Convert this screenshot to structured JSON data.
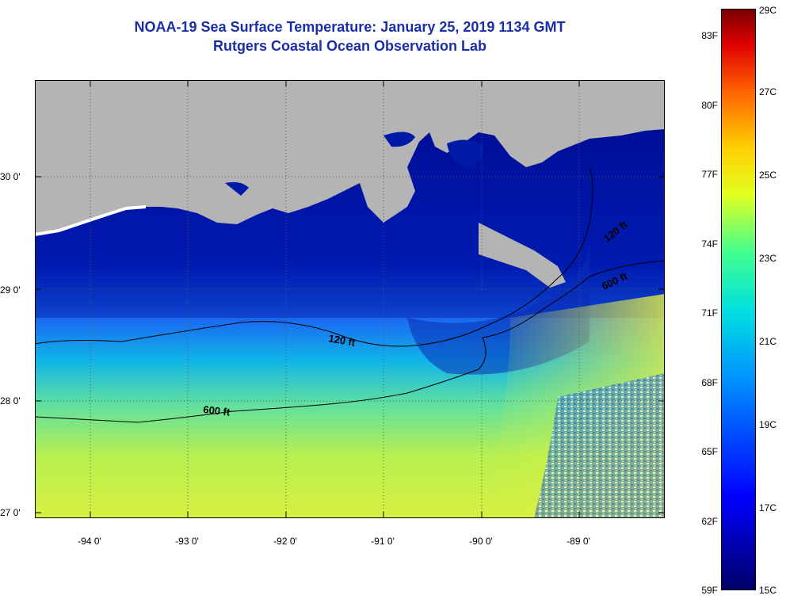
{
  "header": {
    "title": "NOAA-19 Sea Surface Temperature:  January 25, 2019 1134 GMT",
    "subtitle": "Rutgers Coastal Ocean Observation Lab"
  },
  "map": {
    "lat_labels": [
      "30 0'",
      "29 0'",
      "28 0'",
      "27 0'"
    ],
    "lon_labels": [
      "-94 0'",
      "-93 0'",
      "-92 0'",
      "-91 0'",
      "-90 0'",
      "-89 0'"
    ],
    "isobath_labels": [
      "120 ft",
      "120 ft",
      "600 ft",
      "600 ft"
    ],
    "land_color": "#b4b4b4",
    "contour_color": "#000000"
  },
  "colorbar": {
    "fahrenheit_labels": [
      "83F",
      "80F",
      "77F",
      "74F",
      "71F",
      "68F",
      "65F",
      "62F",
      "59F"
    ],
    "celsius_labels": [
      "29C",
      "27C",
      "25C",
      "23C",
      "21C",
      "19C",
      "17C",
      "15C"
    ],
    "range_c": [
      15,
      29
    ],
    "range_f": [
      59,
      84
    ]
  }
}
